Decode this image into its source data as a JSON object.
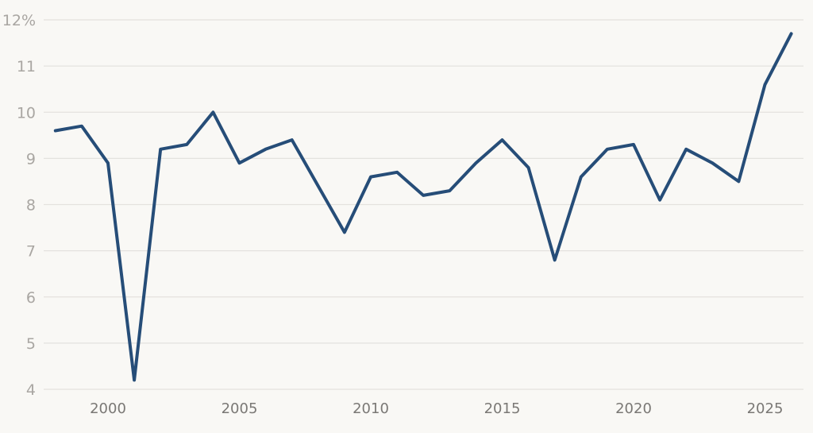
{
  "chart_data": {
    "type": "line",
    "title": "",
    "xlabel": "",
    "ylabel": "",
    "y_unit_suffix": "%",
    "ylim": [
      4,
      12
    ],
    "xlim": [
      1997.3,
      2026.5
    ],
    "grid": true,
    "legend": null,
    "yticks": [
      4,
      5,
      6,
      7,
      8,
      9,
      10,
      11,
      12
    ],
    "ytick_labels": [
      "4",
      "5",
      "6",
      "7",
      "8",
      "9",
      "10",
      "11",
      "12%"
    ],
    "xticks": [
      2000,
      2005,
      2010,
      2015,
      2020,
      2025
    ],
    "xtick_labels": [
      "2000",
      "2005",
      "2010",
      "2015",
      "2020",
      "2025"
    ],
    "series": [
      {
        "name": "value",
        "color": "#264d78",
        "x": [
          1998,
          1999,
          2000,
          2001,
          2002,
          2003,
          2004,
          2005,
          2006,
          2007,
          2008,
          2009,
          2010,
          2011,
          2012,
          2013,
          2014,
          2015,
          2016,
          2017,
          2018,
          2019,
          2020,
          2021,
          2022,
          2023,
          2024,
          2025,
          2026
        ],
        "values": [
          9.6,
          9.7,
          8.9,
          4.2,
          9.2,
          9.3,
          10.0,
          8.9,
          9.2,
          9.4,
          8.4,
          7.4,
          8.6,
          8.7,
          8.2,
          8.3,
          8.9,
          9.4,
          8.8,
          6.8,
          8.6,
          9.2,
          9.3,
          8.1,
          9.2,
          8.9,
          8.5,
          10.6,
          11.7
        ]
      }
    ]
  },
  "colors": {
    "background": "#f9f8f5",
    "grid": "#e4e2de",
    "line": "#264d78",
    "ytick_text": "#a9a6a2",
    "xtick_text": "#7a7875"
  }
}
